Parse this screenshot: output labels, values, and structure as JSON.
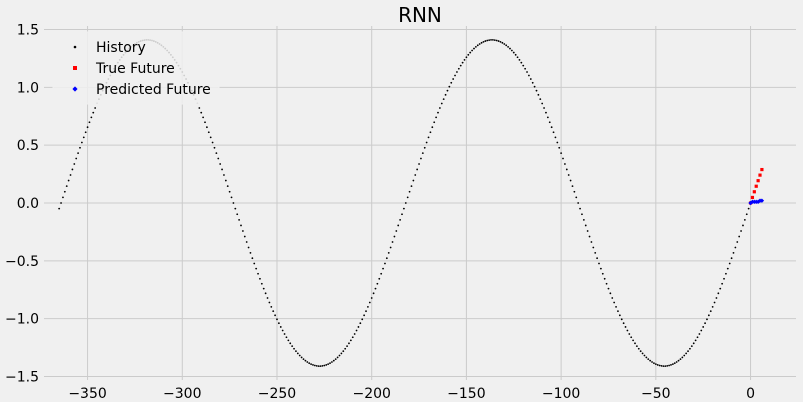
{
  "chart_data": {
    "type": "scatter",
    "title": "RNN",
    "xlabel": "",
    "ylabel": "",
    "xlim": [
      -373,
      24
    ],
    "ylim": [
      -1.53,
      1.53
    ],
    "x_ticks": [
      -350,
      -300,
      -250,
      -200,
      -150,
      -100,
      -50,
      0
    ],
    "x_tick_labels": [
      "−350",
      "−300",
      "−250",
      "−200",
      "−150",
      "−100",
      "−50",
      "0"
    ],
    "y_ticks": [
      1.5,
      1.0,
      0.5,
      0.0,
      -0.5,
      -1.0,
      -1.5
    ],
    "y_tick_labels": [
      "1.5",
      "1.0",
      "0.5",
      "0.0",
      "−0.5",
      "−1.0",
      "−1.5"
    ],
    "grid": true,
    "legend_position": "upper-left",
    "series": [
      {
        "name": "History",
        "color": "#000000",
        "marker": "dot",
        "x_start": -365,
        "x_end": -1,
        "wave": {
          "amplitude": 1.41,
          "period": 182,
          "phase_x": 0
        }
      },
      {
        "name": "True Future",
        "color": "#ff0000",
        "marker": "square",
        "x": [
          0,
          1,
          2,
          3,
          4,
          5,
          6
        ],
        "y": [
          0.0,
          0.048,
          0.097,
          0.145,
          0.193,
          0.241,
          0.289
        ]
      },
      {
        "name": "Predicted Future",
        "color": "#0000ff",
        "marker": "diamond",
        "x": [
          0,
          1,
          2,
          3,
          4,
          5,
          6
        ],
        "y": [
          0.0,
          0.01,
          0.01,
          0.01,
          0.01,
          0.02,
          0.02
        ]
      }
    ]
  }
}
